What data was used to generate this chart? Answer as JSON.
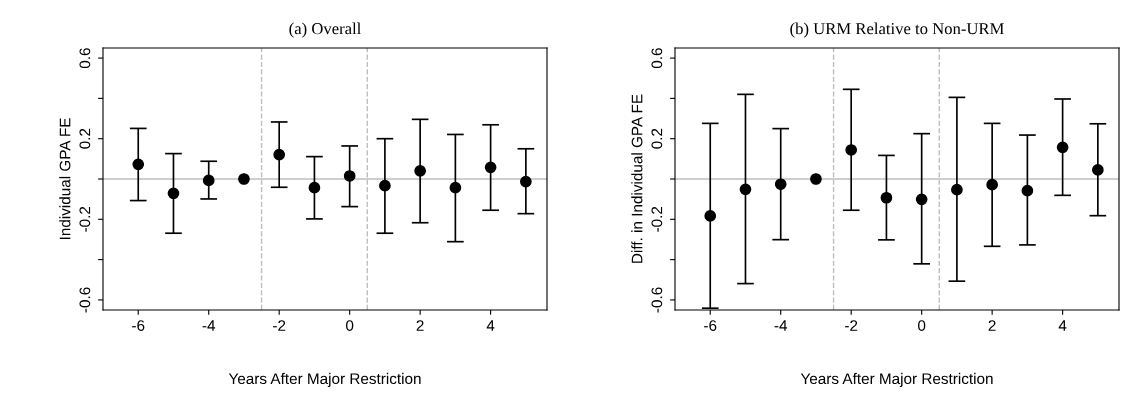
{
  "chart_data": [
    {
      "type": "scatter",
      "title": "(a) Overall",
      "xlabel": "Years After Major Restriction",
      "ylabel": "Individual GPA FE",
      "x": [
        -6,
        -5,
        -4,
        -3,
        -2,
        -1,
        0,
        1,
        2,
        3,
        4,
        5
      ],
      "values": [
        0.073,
        -0.071,
        -0.007,
        0,
        0.121,
        -0.043,
        0.015,
        -0.033,
        0.04,
        -0.043,
        0.058,
        -0.013
      ],
      "errors": [
        [
          -0.107,
          0.251
        ],
        [
          -0.269,
          0.126
        ],
        [
          -0.099,
          0.088
        ],
        null,
        [
          -0.041,
          0.283
        ],
        [
          -0.198,
          0.111
        ],
        [
          -0.137,
          0.164
        ],
        [
          -0.269,
          0.2
        ],
        [
          -0.217,
          0.296
        ],
        [
          -0.311,
          0.221
        ],
        [
          -0.155,
          0.269
        ],
        [
          -0.172,
          0.15
        ]
      ],
      "color": "#000000",
      "marker": "circle",
      "xlim": [
        -7,
        5.6
      ],
      "xticks": [
        -6,
        -4,
        -2,
        0,
        2,
        4
      ],
      "ylim": [
        -0.65,
        0.65
      ],
      "yticks": [
        0.6,
        {
          "value": 0.4,
          "label": null
        },
        0.2,
        {
          "value": 0,
          "label": null
        },
        -0.2,
        {
          "value": -0.4,
          "label": null
        },
        -0.6
      ],
      "ref_lines": [
        {
          "axis": "y",
          "value": 0,
          "color": "#bebebe",
          "line_style": "solid"
        },
        {
          "axis": "x",
          "value": -2.5,
          "color": "#bebebe",
          "line_style": "dashed"
        },
        {
          "axis": "x",
          "value": 0.5,
          "color": "#bebebe",
          "line_style": "dashed"
        }
      ],
      "grid": false,
      "legend": false
    },
    {
      "type": "scatter",
      "title": "(b) URM Relative to Non-URM",
      "xlabel": "Years After Major Restriction",
      "ylabel": "Diff. in Individual GPA FE",
      "x": [
        -6,
        -5,
        -4,
        -3,
        -2,
        -1,
        0,
        1,
        2,
        3,
        4,
        5
      ],
      "values": [
        -0.183,
        -0.051,
        -0.026,
        0,
        0.144,
        -0.093,
        -0.101,
        -0.053,
        -0.028,
        -0.058,
        0.157,
        0.045
      ],
      "errors": [
        [
          -0.641,
          0.276
        ],
        [
          -0.519,
          0.42
        ],
        [
          -0.301,
          0.25
        ],
        null,
        [
          -0.155,
          0.445
        ],
        [
          -0.302,
          0.117
        ],
        [
          -0.421,
          0.225
        ],
        [
          -0.507,
          0.405
        ],
        [
          -0.334,
          0.276
        ],
        [
          -0.327,
          0.218
        ],
        [
          -0.081,
          0.397
        ],
        [
          -0.182,
          0.274
        ]
      ],
      "color": "#000000",
      "marker": "circle",
      "xlim": [
        -7,
        5.6
      ],
      "xticks": [
        -6,
        -4,
        -2,
        0,
        2,
        4
      ],
      "ylim": [
        -0.65,
        0.65
      ],
      "yticks": [
        0.6,
        {
          "value": 0.4,
          "label": null
        },
        0.2,
        {
          "value": 0,
          "label": null
        },
        -0.2,
        {
          "value": -0.4,
          "label": null
        },
        -0.6
      ],
      "ref_lines": [
        {
          "axis": "y",
          "value": 0,
          "color": "#bebebe",
          "line_style": "solid"
        },
        {
          "axis": "x",
          "value": -2.5,
          "color": "#bebebe",
          "line_style": "dashed"
        },
        {
          "axis": "x",
          "value": 0.5,
          "color": "#bebebe",
          "line_style": "dashed"
        }
      ],
      "grid": false,
      "legend": false
    }
  ]
}
